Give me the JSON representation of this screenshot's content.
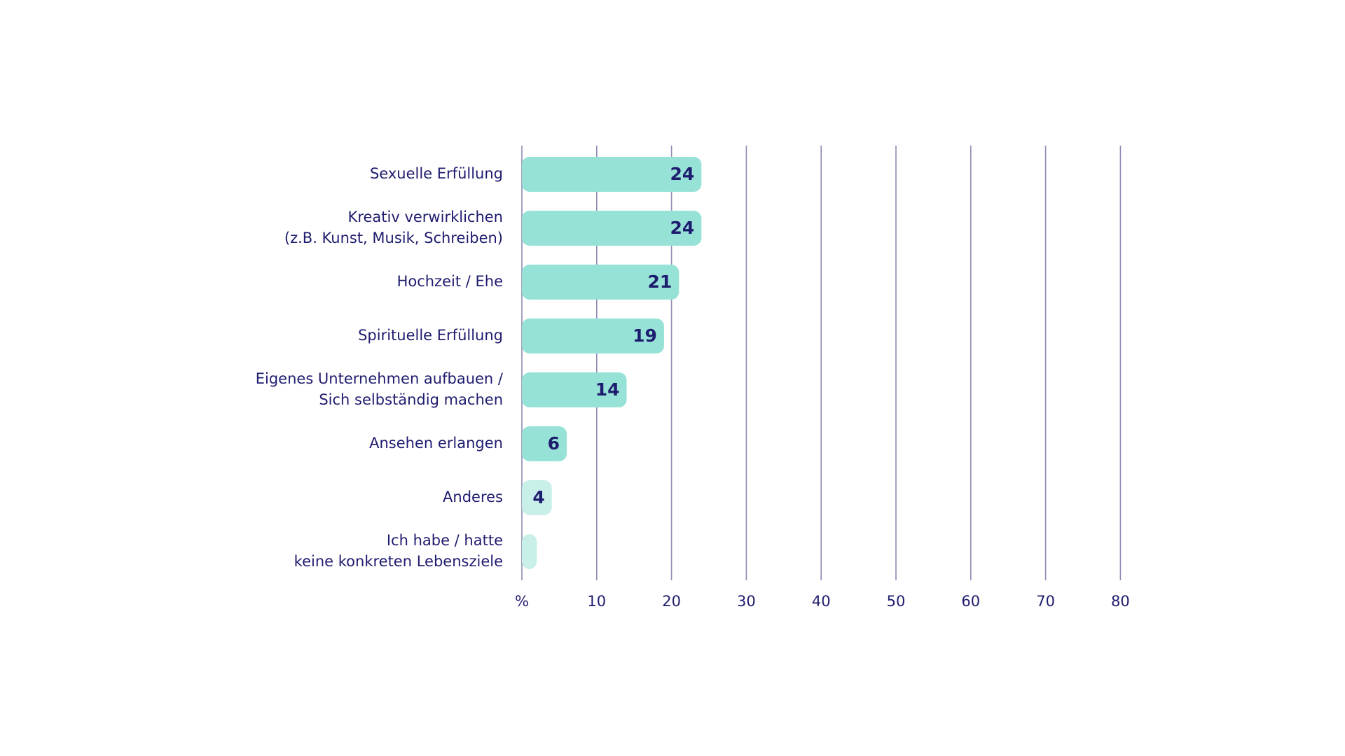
{
  "chart_data": {
    "type": "bar",
    "orientation": "horizontal",
    "title": "",
    "xlabel": "",
    "ylabel": "",
    "unit_label": "%",
    "xlim": [
      0,
      80
    ],
    "xticks": [
      0,
      10,
      20,
      30,
      40,
      50,
      60,
      70,
      80
    ],
    "xtick_labels": [
      "%",
      "10",
      "20",
      "30",
      "40",
      "50",
      "60",
      "70",
      "80"
    ],
    "grid": true,
    "legend": false,
    "categories": [
      [
        "Sexuelle Erfüllung"
      ],
      [
        "Kreativ verwirklichen",
        "(z.B. Kunst, Musik, Schreiben)"
      ],
      [
        "Hochzeit / Ehe"
      ],
      [
        "Spirituelle Erfüllung"
      ],
      [
        "Eigenes Unternehmen aufbauen /",
        "Sich selbständig machen"
      ],
      [
        "Ansehen erlangen"
      ],
      [
        "Anderes"
      ],
      [
        "Ich habe / hatte",
        "keine konkreten Lebensziele"
      ]
    ],
    "values": [
      24,
      24,
      21,
      19,
      14,
      6,
      4,
      2
    ],
    "value_labels": [
      "24",
      "24",
      "21",
      "19",
      "14",
      "6",
      "4",
      ""
    ],
    "colors": {
      "bar": "#97e2d6",
      "bar_light": "#c8f0e9",
      "text": "#1e1c6e",
      "grid": "#8d8bb4"
    },
    "light_bar_indices": [
      6,
      7
    ]
  }
}
